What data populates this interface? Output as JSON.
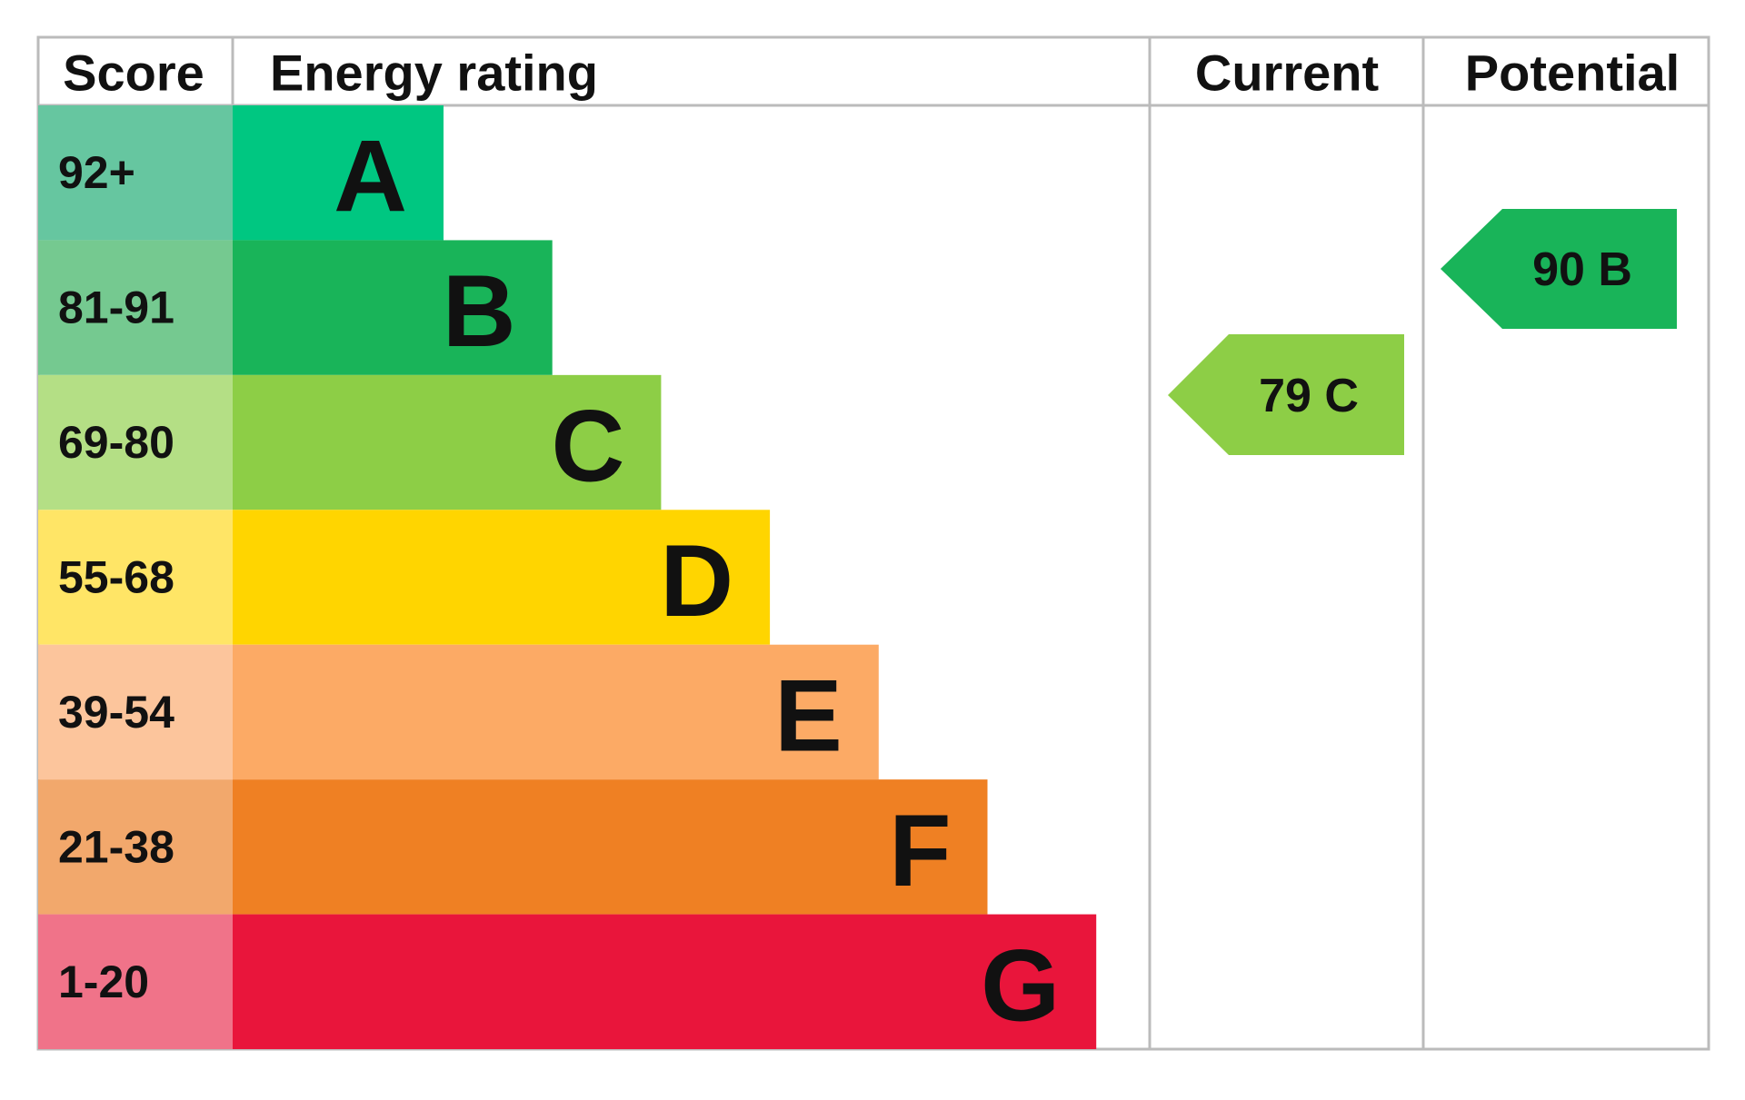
{
  "header": {
    "score": "Score",
    "energy_rating": "Energy rating",
    "current": "Current",
    "potential": "Potential"
  },
  "bands": [
    {
      "score": "92+",
      "letter": "A",
      "color": "#00c781",
      "score_color": "#66c6a0"
    },
    {
      "score": "81-91",
      "letter": "B",
      "color": "#19b459",
      "score_color": "#75c990"
    },
    {
      "score": "69-80",
      "letter": "C",
      "color": "#8dce46",
      "score_color": "#b4df85"
    },
    {
      "score": "55-68",
      "letter": "D",
      "color": "#ffd500",
      "score_color": "#ffe566"
    },
    {
      "score": "39-54",
      "letter": "E",
      "color": "#fcaa65",
      "score_color": "#fcc59c"
    },
    {
      "score": "21-38",
      "letter": "F",
      "color": "#ef8023",
      "score_color": "#f2a86c"
    },
    {
      "score": "1-20",
      "letter": "G",
      "color": "#e9153b",
      "score_color": "#f07389"
    }
  ],
  "current": {
    "label": "79 C",
    "color": "#8dce46"
  },
  "potential": {
    "label": "90 B",
    "color": "#19b459"
  }
}
